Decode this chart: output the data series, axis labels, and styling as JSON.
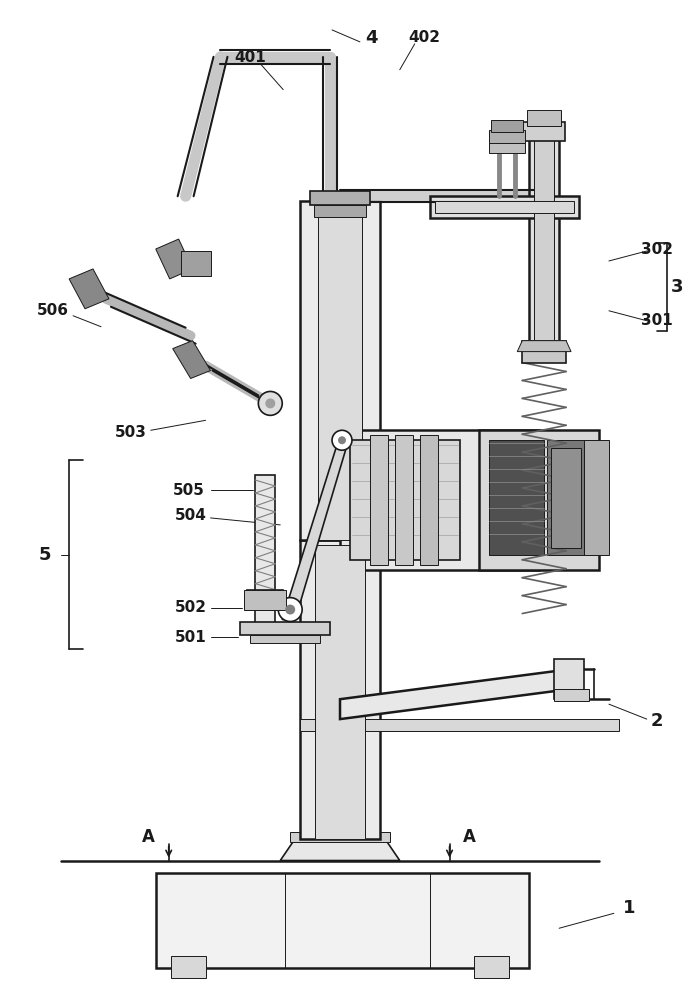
{
  "bg_color": "#ffffff",
  "line_color": "#1a1a1a",
  "figsize": [
    6.84,
    10.0
  ],
  "dpi": 100
}
